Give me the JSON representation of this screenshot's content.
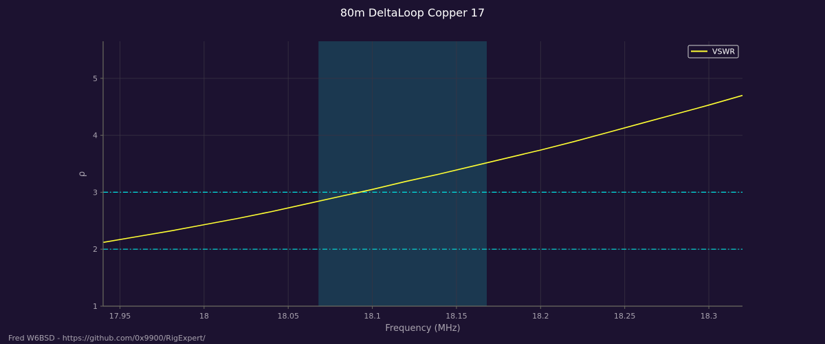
{
  "footer": {
    "credit": "Fred W6BSD - https://github.com/0x9900/RigExpert/"
  },
  "colors": {
    "background": "#1c1230",
    "plot_background": "#1c1230",
    "band_highlight": "#1b3850",
    "vswr_line": "#ffff33",
    "reference_lines": "#00e5e5",
    "grid": "#3a3344",
    "axis": "#6b6b60",
    "tick_text": "#a8a2ae",
    "title_text": "#ffffff"
  },
  "chart_data": {
    "type": "line",
    "title": "80m DeltaLoop Copper 17",
    "xlabel": "Frequency (MHz)",
    "ylabel": "ρ",
    "xlim": [
      17.94,
      18.32
    ],
    "ylim": [
      1.0,
      5.65
    ],
    "x_ticks": [
      17.95,
      18.0,
      18.05,
      18.1,
      18.15,
      18.2,
      18.25,
      18.3
    ],
    "x_tick_labels": [
      "17.95",
      "18",
      "18.05",
      "18.1",
      "18.15",
      "18.2",
      "18.25",
      "18.3"
    ],
    "y_ticks": [
      1,
      2,
      3,
      4,
      5
    ],
    "y_tick_labels": [
      "1",
      "2",
      "3",
      "4",
      "5"
    ],
    "grid": true,
    "legend": {
      "placement": "top-right",
      "entries": [
        "VSWR"
      ]
    },
    "highlight_band": {
      "x_start": 18.068,
      "x_end": 18.168
    },
    "reference_lines": [
      {
        "y": 2.0,
        "style": "dash-dot"
      },
      {
        "y": 3.0,
        "style": "dash-dot"
      }
    ],
    "series": [
      {
        "name": "VSWR",
        "x": [
          17.94,
          17.96,
          17.98,
          18.0,
          18.02,
          18.04,
          18.06,
          18.08,
          18.1,
          18.12,
          18.14,
          18.16,
          18.18,
          18.2,
          18.22,
          18.24,
          18.26,
          18.28,
          18.3,
          18.32
        ],
        "values": [
          2.12,
          2.22,
          2.32,
          2.43,
          2.54,
          2.66,
          2.79,
          2.92,
          3.05,
          3.19,
          3.32,
          3.46,
          3.6,
          3.74,
          3.89,
          4.05,
          4.21,
          4.37,
          4.53,
          4.7
        ]
      }
    ]
  }
}
